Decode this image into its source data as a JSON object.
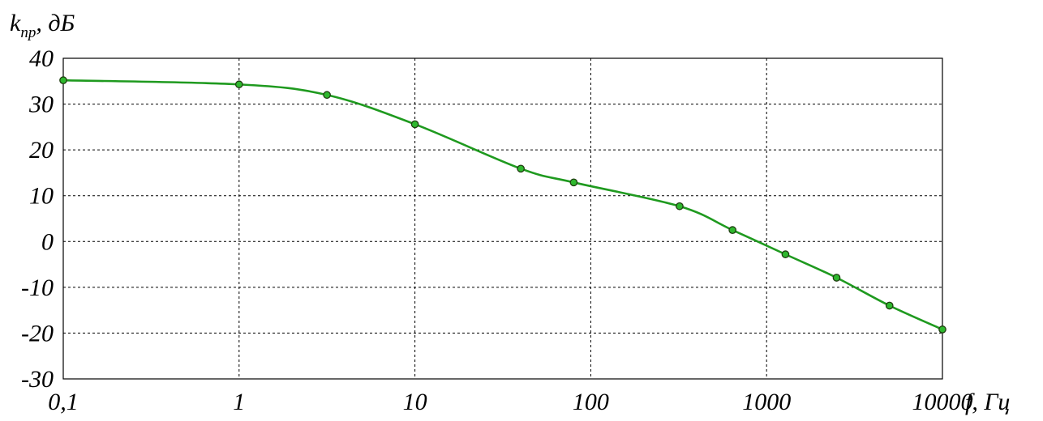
{
  "chart_data": {
    "type": "line",
    "title": "",
    "x_scale": "log",
    "xlim": [
      0.1,
      10000
    ],
    "ylim": [
      -30,
      40
    ],
    "grid": true,
    "x_ticks": [
      {
        "value": 0.1,
        "label": "0,1"
      },
      {
        "value": 1,
        "label": "1"
      },
      {
        "value": 10,
        "label": "10"
      },
      {
        "value": 100,
        "label": "100"
      },
      {
        "value": 1000,
        "label": "1000"
      },
      {
        "value": 10000,
        "label": "10000"
      }
    ],
    "y_ticks": [
      {
        "value": 40,
        "label": "40"
      },
      {
        "value": 30,
        "label": "30"
      },
      {
        "value": 20,
        "label": "20"
      },
      {
        "value": 10,
        "label": "10"
      },
      {
        "value": 0,
        "label": "0"
      },
      {
        "value": -10,
        "label": "-10"
      },
      {
        "value": -20,
        "label": "-20"
      },
      {
        "value": -30,
        "label": "-30"
      }
    ],
    "ylabel": {
      "main": "k",
      "sub": "пр",
      "rest": ", дБ"
    },
    "xlabel": "f, Гц",
    "series": [
      {
        "color": "#1f9a1f",
        "marker_color": "#2eb82e",
        "x": [
          0.1,
          1,
          3.16,
          10,
          40,
          80,
          320,
          640,
          1280,
          2500,
          5000,
          10000
        ],
        "y": [
          35.2,
          34.3,
          32,
          25.6,
          15.9,
          12.9,
          7.7,
          2.5,
          -2.8,
          -7.9,
          -14,
          -19.2
        ]
      }
    ]
  }
}
